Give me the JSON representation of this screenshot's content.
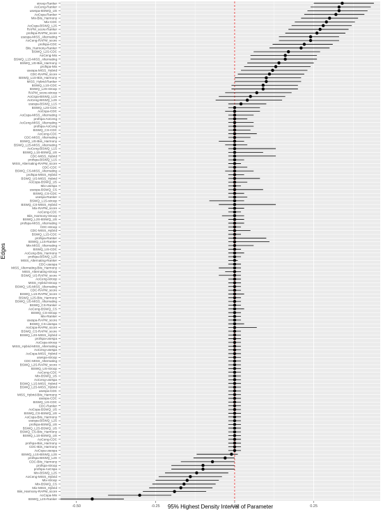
{
  "chart_data": {
    "type": "scatter",
    "subtype": "interval-dot",
    "xlabel": "95% Highest Density Interval of Parameter",
    "ylabel": "Edges",
    "x_ticks": [
      -0.5,
      -0.25,
      0.0,
      0.25
    ],
    "x_tick_labels": [
      "-0.50",
      "-0.25",
      "0.00",
      "0.25"
    ],
    "xlim": [
      -0.55,
      0.46
    ],
    "reference_line": {
      "x": 0,
      "color": "#e8312f",
      "style": "dashed"
    },
    "grid": true,
    "panel_color": "#ebebeb",
    "point_color": "#000000",
    "rows": [
      {
        "edge": "stroop-Ranker",
        "estimate": 0.34,
        "lower": 0.25,
        "upper": 0.44
      },
      {
        "edge": "AoCeng-Ranker",
        "estimate": 0.33,
        "lower": 0.24,
        "upper": 0.43
      },
      {
        "edge": "usespa-BSWQ_US",
        "estimate": 0.33,
        "lower": 0.23,
        "upper": 0.42
      },
      {
        "edge": "AoCspa-Ranker",
        "estimate": 0.32,
        "lower": 0.22,
        "upper": 0.41
      },
      {
        "edge": "Mix-Biis_Harmony",
        "estimate": 0.3,
        "lower": 0.21,
        "upper": 0.39
      },
      {
        "edge": "Mix-CDC",
        "estimate": 0.29,
        "lower": 0.19,
        "upper": 0.38
      },
      {
        "edge": "AoCspa-BSWQ_L2S",
        "estimate": 0.28,
        "lower": 0.18,
        "upper": 0.37
      },
      {
        "edge": "RAPM_score-Ranker",
        "estimate": 0.27,
        "lower": 0.17,
        "upper": 0.36
      },
      {
        "edge": "profspa-RAPM_score",
        "estimate": 0.26,
        "lower": 0.16,
        "upper": 0.35
      },
      {
        "edge": "usespa-MISS_Alternating",
        "estimate": 0.24,
        "lower": 0.14,
        "upper": 0.33
      },
      {
        "edge": "AoCeng-RAPM_score",
        "estimate": 0.24,
        "lower": 0.14,
        "upper": 0.33
      },
      {
        "edge": "profspa-CDC",
        "estimate": 0.22,
        "lower": 0.12,
        "upper": 0.31
      },
      {
        "edge": "Biis_Harmony-Ranker",
        "estimate": 0.21,
        "lower": 0.11,
        "upper": 0.3
      },
      {
        "edge": "BSWQ_L2S-CDC",
        "estimate": 0.17,
        "lower": 0.06,
        "upper": 0.27
      },
      {
        "edge": "AoCeng-Mix",
        "estimate": 0.16,
        "lower": 0.05,
        "upper": 0.26
      },
      {
        "edge": "BSWQ_L1S-MISS_Alternating",
        "estimate": 0.16,
        "lower": 0.05,
        "upper": 0.26
      },
      {
        "edge": "BSWQ_US-Biis_Harmony",
        "estimate": 0.14,
        "lower": 0.04,
        "upper": 0.25
      },
      {
        "edge": "profspa-Mix",
        "estimate": 0.13,
        "lower": 0.03,
        "upper": 0.24
      },
      {
        "edge": "usespa-MISS_Hybrid",
        "estimate": 0.12,
        "lower": 0.02,
        "upper": 0.23
      },
      {
        "edge": "CDC-RAPM_score",
        "estimate": 0.11,
        "lower": 0.01,
        "upper": 0.22
      },
      {
        "edge": "BSWQ_L1S-Biis_Harmony",
        "estimate": 0.1,
        "lower": 0.0,
        "upper": 0.21
      },
      {
        "edge": "MISS_Hybrid-Ranker",
        "estimate": 0.1,
        "lower": 0.0,
        "upper": 0.21
      },
      {
        "edge": "BSWQ_L1S-CDC",
        "estimate": 0.09,
        "lower": -0.01,
        "upper": 0.2
      },
      {
        "edge": "BSWQ_L2S-stroop",
        "estimate": 0.09,
        "lower": -0.01,
        "upper": 0.2
      },
      {
        "edge": "RAPM_score-stroop",
        "estimate": 0.07,
        "lower": -0.03,
        "upper": 0.18
      },
      {
        "edge": "AoCspa-BSWQ_L1S",
        "estimate": 0.05,
        "lower": -0.05,
        "upper": 0.16
      },
      {
        "edge": "AoCeng-BSWQ_L2S",
        "estimate": 0.04,
        "lower": -0.06,
        "upper": 0.15
      },
      {
        "edge": "usespa-BSWQ_L1S",
        "estimate": 0.02,
        "lower": -0.02,
        "upper": 0.1
      },
      {
        "edge": "BSWQ_L2S-CDC",
        "estimate": 0.0,
        "lower": -0.02,
        "upper": 0.08
      },
      {
        "edge": "AoCspa-CDC",
        "estimate": 0.0,
        "lower": -0.03,
        "upper": 0.08
      },
      {
        "edge": "AoCspa-MISS_Alternating",
        "estimate": 0.0,
        "lower": -0.02,
        "upper": 0.06
      },
      {
        "edge": "profspa-AoCeng",
        "estimate": 0.0,
        "lower": -0.02,
        "upper": 0.04
      },
      {
        "edge": "AoCeng-MISS_Alternating",
        "estimate": 0.0,
        "lower": -0.02,
        "upper": 0.06
      },
      {
        "edge": "profspa-AoCeng",
        "estimate": 0.0,
        "lower": -0.02,
        "upper": 0.06
      },
      {
        "edge": "BSWQ_CS-CDC",
        "estimate": 0.0,
        "lower": -0.02,
        "upper": 0.05
      },
      {
        "edge": "AoCeng-CDC",
        "estimate": 0.0,
        "lower": -0.02,
        "upper": 0.07
      },
      {
        "edge": "CDC-MISS_Alternating",
        "estimate": 0.0,
        "lower": -0.02,
        "upper": 0.05
      },
      {
        "edge": "BSWQ_US-Biis_Harmony",
        "estimate": 0.0,
        "lower": -0.05,
        "upper": 0.03
      },
      {
        "edge": "BSWQ_L2S-MISS_Alternating",
        "estimate": 0.0,
        "lower": -0.03,
        "upper": 0.04
      },
      {
        "edge": "AoCeng-BSWQ_L1S",
        "estimate": 0.0,
        "lower": -0.02,
        "upper": 0.13
      },
      {
        "edge": "BSWQ_L1S-BSWQ_US",
        "estimate": 0.0,
        "lower": -0.02,
        "upper": 0.09
      },
      {
        "edge": "CDC-MISS_Hybrid",
        "estimate": 0.0,
        "lower": -0.02,
        "upper": 0.13
      },
      {
        "edge": "profspa-BSWQ_L1S",
        "estimate": 0.0,
        "lower": -0.02,
        "upper": 0.03
      },
      {
        "edge": "MISS_Alternating-RAPM_score",
        "estimate": 0.0,
        "lower": -0.02,
        "upper": 0.02
      },
      {
        "edge": "CDC-CDC",
        "estimate": 0.0,
        "lower": -0.02,
        "upper": 0.04
      },
      {
        "edge": "BSWQ_CS-MISS_Alternating",
        "estimate": 0.0,
        "lower": -0.03,
        "upper": 0.06
      },
      {
        "edge": "profspa-MISS_Hybrid",
        "estimate": 0.0,
        "lower": -0.02,
        "upper": 0.03
      },
      {
        "edge": "BSWQ_US-MISS_Hybrid",
        "estimate": 0.0,
        "lower": -0.02,
        "upper": 0.08
      },
      {
        "edge": "AoCspa-BSWQ_US",
        "estimate": 0.0,
        "lower": -0.02,
        "upper": 0.04
      },
      {
        "edge": "Mix-usespa",
        "estimate": 0.0,
        "lower": -0.02,
        "upper": 0.02
      },
      {
        "edge": "usespa-BSWQ_CS",
        "estimate": 0.0,
        "lower": -0.02,
        "upper": 0.09
      },
      {
        "edge": "BSWQ_CS-CDC",
        "estimate": 0.0,
        "lower": -0.02,
        "upper": 0.03
      },
      {
        "edge": "usespa-Ranker",
        "estimate": 0.0,
        "lower": -0.02,
        "upper": 0.04
      },
      {
        "edge": "BSWQ_L1S-stroop",
        "estimate": 0.0,
        "lower": -0.08,
        "upper": 0.03
      },
      {
        "edge": "BSWQ_CS-MISS_Hybrid",
        "estimate": 0.0,
        "lower": -0.05,
        "upper": 0.13
      },
      {
        "edge": "Mix-RAPM_score",
        "estimate": 0.0,
        "lower": -0.02,
        "upper": 0.03
      },
      {
        "edge": "AoCeng-CDC",
        "estimate": 0.0,
        "lower": -0.02,
        "upper": 0.02
      },
      {
        "edge": "Biis_Harmony-stroop",
        "estimate": 0.0,
        "lower": -0.04,
        "upper": 0.03
      },
      {
        "edge": "BSWQ_L2S-BSWQ_US",
        "estimate": 0.0,
        "lower": -0.02,
        "upper": 0.03
      },
      {
        "edge": "profspa-MISS_Alternating",
        "estimate": 0.0,
        "lower": -0.02,
        "upper": 0.03
      },
      {
        "edge": "CDC-stroop",
        "estimate": 0.0,
        "lower": -0.02,
        "upper": 0.02
      },
      {
        "edge": "CDC-MISS_Hybrid",
        "estimate": 0.0,
        "lower": -0.02,
        "upper": 0.05
      },
      {
        "edge": "BSWQ_L1S-CDC",
        "estimate": 0.0,
        "lower": -0.02,
        "upper": 0.02
      },
      {
        "edge": "profspa-Ranker",
        "estimate": 0.0,
        "lower": -0.02,
        "upper": 0.1
      },
      {
        "edge": "BSWQ_L1S-Ranker",
        "estimate": 0.0,
        "lower": -0.02,
        "upper": 0.11
      },
      {
        "edge": "Mix-MISS_Alternating",
        "estimate": 0.0,
        "lower": -0.02,
        "upper": 0.06
      },
      {
        "edge": "BSWQ_US-CDC",
        "estimate": 0.0,
        "lower": -0.02,
        "upper": 0.02
      },
      {
        "edge": "AoCeng-Biis_Harmony",
        "estimate": 0.0,
        "lower": -0.02,
        "upper": 0.03
      },
      {
        "edge": "profspa-BSWQ_L2S",
        "estimate": 0.0,
        "lower": -0.02,
        "upper": 0.02
      },
      {
        "edge": "MISS_Alternating-Ranker",
        "estimate": 0.0,
        "lower": -0.02,
        "upper": 0.01
      },
      {
        "edge": "CDC-usespa",
        "estimate": 0.0,
        "lower": -0.02,
        "upper": 0.02
      },
      {
        "edge": "MISS_Alternating-Biis_Harmony",
        "estimate": 0.0,
        "lower": -0.05,
        "upper": 0.02
      },
      {
        "edge": "MISS_Alternating-stroop",
        "estimate": 0.0,
        "lower": -0.03,
        "upper": 0.02
      },
      {
        "edge": "BSWQ_US-RAPM_score",
        "estimate": 0.0,
        "lower": -0.05,
        "upper": 0.02
      },
      {
        "edge": "AoCeng-stroop",
        "estimate": 0.0,
        "lower": -0.02,
        "upper": 0.02
      },
      {
        "edge": "MISS_Hybrid-stroop",
        "estimate": 0.0,
        "lower": -0.02,
        "upper": 0.02
      },
      {
        "edge": "BSWQ_US-MISS_Alternating",
        "estimate": 0.0,
        "lower": -0.02,
        "upper": 0.02
      },
      {
        "edge": "CDC-RAPM_score",
        "estimate": 0.0,
        "lower": -0.02,
        "upper": 0.02
      },
      {
        "edge": "BSWQ_L1S-RAPM_score",
        "estimate": 0.0,
        "lower": -0.02,
        "upper": 0.03
      },
      {
        "edge": "BSWQ_L2S-Biis_Harmony",
        "estimate": 0.0,
        "lower": -0.02,
        "upper": 0.02
      },
      {
        "edge": "BSWQ_US-MISS_Alternating",
        "estimate": 0.0,
        "lower": -0.02,
        "upper": 0.02
      },
      {
        "edge": "BSWQ_CS-Ranker",
        "estimate": 0.0,
        "lower": -0.02,
        "upper": 0.02
      },
      {
        "edge": "AoCeng-BSWQ_CS",
        "estimate": 0.0,
        "lower": -0.02,
        "upper": 0.03
      },
      {
        "edge": "BSWQ_CS-stroop",
        "estimate": 0.0,
        "lower": -0.02,
        "upper": 0.02
      },
      {
        "edge": "Mix-Ranker",
        "estimate": 0.0,
        "lower": -0.02,
        "upper": 0.02
      },
      {
        "edge": "usespa-RAPM_score",
        "estimate": 0.0,
        "lower": -0.02,
        "upper": 0.02
      },
      {
        "edge": "BSWQ_CS-usespa",
        "estimate": 0.0,
        "lower": -0.02,
        "upper": 0.03
      },
      {
        "edge": "AoCspa-RAPM_score",
        "estimate": 0.0,
        "lower": -0.02,
        "upper": 0.07
      },
      {
        "edge": "BSWQ_CS-RAPM_score",
        "estimate": 0.0,
        "lower": -0.02,
        "upper": 0.02
      },
      {
        "edge": "BSWQ_L2S-MISS_Hybrid",
        "estimate": 0.0,
        "lower": -0.02,
        "upper": 0.02
      },
      {
        "edge": "profspa-usespa",
        "estimate": 0.0,
        "lower": -0.02,
        "upper": 0.02
      },
      {
        "edge": "AoCspa-stroop",
        "estimate": 0.0,
        "lower": -0.02,
        "upper": 0.02
      },
      {
        "edge": "MISS_Hybrid-MISS_Alternating",
        "estimate": 0.0,
        "lower": -0.02,
        "upper": 0.02
      },
      {
        "edge": "AoCeng-usespa",
        "estimate": 0.0,
        "lower": -0.02,
        "upper": 0.02
      },
      {
        "edge": "AoCspa-MISS_Hybrid",
        "estimate": 0.0,
        "lower": -0.02,
        "upper": 0.02
      },
      {
        "edge": "usespa-stroop",
        "estimate": 0.0,
        "lower": -0.02,
        "upper": 0.02
      },
      {
        "edge": "CDC-MISS_Alternating",
        "estimate": 0.0,
        "lower": -0.02,
        "upper": 0.02
      },
      {
        "edge": "BSWQ_L2S-RAPM_score",
        "estimate": 0.0,
        "lower": -0.02,
        "upper": 0.02
      },
      {
        "edge": "BSWQ_US-stroop",
        "estimate": 0.0,
        "lower": -0.02,
        "upper": 0.02
      },
      {
        "edge": "AoCeng-CDC",
        "estimate": 0.0,
        "lower": -0.02,
        "upper": 0.02
      },
      {
        "edge": "Mix-BSWQ_US",
        "estimate": 0.0,
        "lower": -0.02,
        "upper": 0.02
      },
      {
        "edge": "AoCeng-usespa",
        "estimate": 0.0,
        "lower": -0.02,
        "upper": 0.02
      },
      {
        "edge": "BSWQ_L1S-MISS_Hybrid",
        "estimate": 0.0,
        "lower": -0.02,
        "upper": 0.02
      },
      {
        "edge": "BSWQ_L2S-MISS_Hybrid",
        "estimate": 0.0,
        "lower": -0.02,
        "upper": 0.02
      },
      {
        "edge": "usespa-CDC",
        "estimate": 0.0,
        "lower": -0.02,
        "upper": 0.02
      },
      {
        "edge": "MISS_Hybrid-Biis_Harmony",
        "estimate": 0.0,
        "lower": -0.02,
        "upper": 0.02
      },
      {
        "edge": "usespa-CDC",
        "estimate": 0.0,
        "lower": -0.02,
        "upper": 0.02
      },
      {
        "edge": "BSWQ_US-CDC",
        "estimate": 0.0,
        "lower": -0.02,
        "upper": 0.02
      },
      {
        "edge": "CDC-Ranker",
        "estimate": 0.0,
        "lower": -0.02,
        "upper": 0.02
      },
      {
        "edge": "AoCspa-BSWQ_US",
        "estimate": 0.0,
        "lower": -0.02,
        "upper": 0.02
      },
      {
        "edge": "BSWQ_CS-BSWQ_US",
        "estimate": 0.0,
        "lower": -0.02,
        "upper": 0.02
      },
      {
        "edge": "AoCspa-Biis_Harmony",
        "estimate": 0.0,
        "lower": -0.02,
        "upper": 0.02
      },
      {
        "edge": "usespa-BSWQ_L2S",
        "estimate": 0.0,
        "lower": -0.02,
        "upper": 0.02
      },
      {
        "edge": "profspa-BSWQ_US",
        "estimate": 0.0,
        "lower": -0.02,
        "upper": 0.02
      },
      {
        "edge": "BSWQ_L2S-BSWQ_US",
        "estimate": 0.0,
        "lower": -0.02,
        "upper": 0.02
      },
      {
        "edge": "BSWQ_CS-Biis_Harmony",
        "estimate": 0.0,
        "lower": -0.02,
        "upper": 0.02
      },
      {
        "edge": "BSWQ_L1S-BSWQ_US",
        "estimate": 0.0,
        "lower": -0.02,
        "upper": 0.02
      },
      {
        "edge": "AoCeng-CDC",
        "estimate": 0.0,
        "lower": -0.02,
        "upper": 0.02
      },
      {
        "edge": "profspa-Biis_Harmony",
        "estimate": 0.0,
        "lower": -0.02,
        "upper": 0.02
      },
      {
        "edge": "CDC-Biis_Harmony",
        "estimate": 0.0,
        "lower": -0.02,
        "upper": 0.02
      },
      {
        "edge": "AoCspa-usespa",
        "estimate": 0.0,
        "lower": -0.02,
        "upper": 0.02
      },
      {
        "edge": "BSWQ_L1S-BSWQ_L2S",
        "estimate": -0.01,
        "lower": -0.12,
        "upper": 0.01
      },
      {
        "edge": "profspa-BSWQ_L2S",
        "estimate": -0.03,
        "lower": -0.13,
        "upper": 0.0
      },
      {
        "edge": "CDC-Biis_Harmony",
        "estimate": -0.07,
        "lower": -0.17,
        "upper": 0.0
      },
      {
        "edge": "profspa-stroop",
        "estimate": -0.1,
        "lower": -0.2,
        "upper": 0.0
      },
      {
        "edge": "profspa-AoCspa",
        "estimate": -0.1,
        "lower": -0.2,
        "upper": 0.0
      },
      {
        "edge": "Mix-BSWQ_L2S",
        "estimate": -0.12,
        "lower": -0.22,
        "upper": -0.02
      },
      {
        "edge": "AoCeng-MISS_Hybrid",
        "estimate": -0.14,
        "lower": -0.24,
        "upper": -0.04
      },
      {
        "edge": "Mix-stroop",
        "estimate": -0.15,
        "lower": -0.25,
        "upper": -0.05
      },
      {
        "edge": "Mix-BSWQ_CS",
        "estimate": -0.16,
        "lower": -0.26,
        "upper": -0.06
      },
      {
        "edge": "Mix-MISS_Hybrid",
        "estimate": -0.17,
        "lower": -0.27,
        "upper": -0.07
      },
      {
        "edge": "Biis_Harmony-RAPM_score",
        "estimate": -0.19,
        "lower": -0.29,
        "upper": -0.09
      },
      {
        "edge": "AoCspa-Mix",
        "estimate": -0.3,
        "lower": -0.4,
        "upper": -0.2
      },
      {
        "edge": "BSWQ_L2S-Ranker",
        "estimate": -0.45,
        "lower": -0.55,
        "upper": -0.35
      }
    ]
  }
}
